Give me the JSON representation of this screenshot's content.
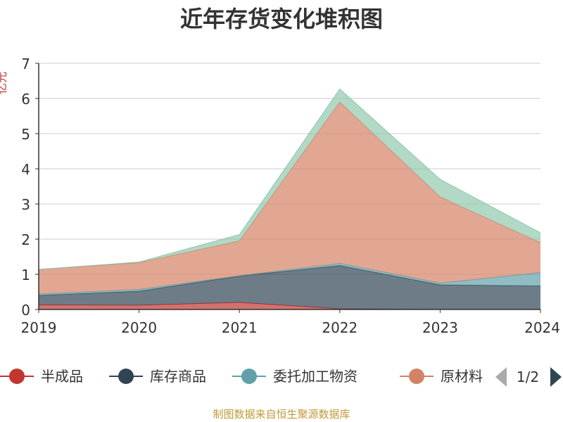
{
  "chart_data": {
    "type": "area",
    "stacked": true,
    "title": "近年存货变化堆积图",
    "ylabel": "亿元",
    "x": [
      "2019",
      "2020",
      "2021",
      "2022",
      "2023",
      "2024"
    ],
    "ylim": [
      0,
      7
    ],
    "yticks": [
      0,
      1,
      2,
      3,
      4,
      5,
      6,
      7
    ],
    "grid": true,
    "legend_placement": "bottom",
    "series": [
      {
        "name": "半成品",
        "color": "#c23531",
        "values": [
          0.13,
          0.12,
          0.2,
          0.02,
          0.0,
          0.0
        ]
      },
      {
        "name": "库存商品",
        "color": "#2f4554",
        "values": [
          0.27,
          0.4,
          0.75,
          1.23,
          0.7,
          0.67
        ]
      },
      {
        "name": "委托加工物资",
        "color": "#61a0a8",
        "values": [
          0.04,
          0.05,
          0.01,
          0.06,
          0.05,
          0.38
        ]
      },
      {
        "name": "原材料",
        "color": "#d48265",
        "values": [
          0.7,
          0.76,
          0.99,
          4.59,
          2.45,
          0.85
        ]
      },
      {
        "name": "",
        "color": "#91c7ae",
        "values": [
          0.0,
          0.02,
          0.18,
          0.37,
          0.5,
          0.28
        ]
      }
    ],
    "legend": {
      "items": [
        "半成品",
        "库存商品",
        "委托加工物资",
        "原材料"
      ],
      "truncated_last": true,
      "page": "1/2"
    },
    "source_text": "制图数据来自恒生聚源数据库"
  }
}
